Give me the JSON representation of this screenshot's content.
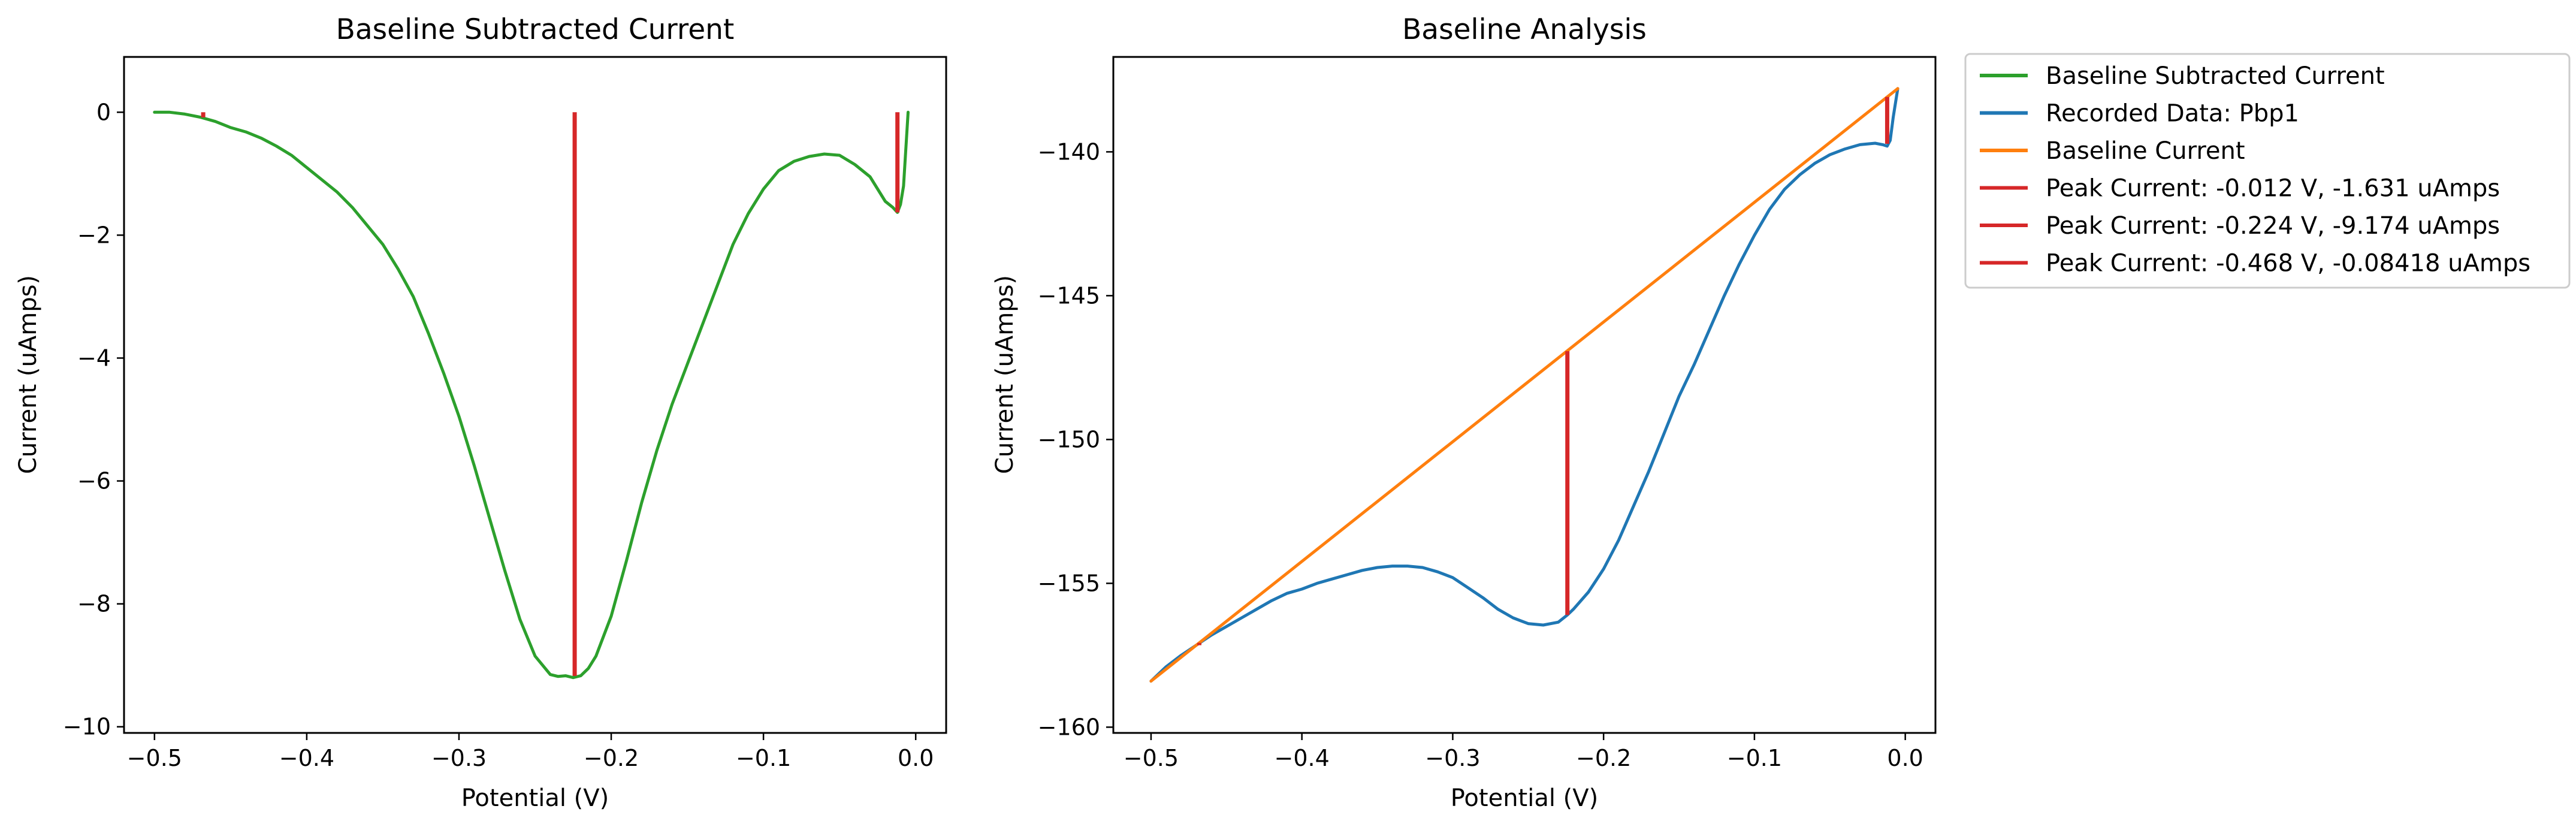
{
  "chart_data": [
    {
      "type": "line",
      "title": "Baseline Subtracted Current",
      "xlabel": "Potential (V)",
      "ylabel": "Current (uAmps)",
      "xlim": [
        -0.52,
        0.02
      ],
      "ylim": [
        -10.1,
        0.9
      ],
      "xticks": [
        -0.5,
        -0.4,
        -0.3,
        -0.2,
        -0.1,
        0.0
      ],
      "xtick_labels": [
        "−0.5",
        "−0.4",
        "−0.3",
        "−0.2",
        "−0.1",
        "0.0"
      ],
      "yticks": [
        0,
        -2,
        -4,
        -6,
        -8,
        -10
      ],
      "ytick_labels": [
        "0",
        "−2",
        "−4",
        "−6",
        "−8",
        "−10"
      ],
      "series": [
        {
          "name": "Baseline Subtracted Current",
          "color": "#2ca02c",
          "x": [
            -0.5,
            -0.49,
            -0.48,
            -0.47,
            -0.46,
            -0.45,
            -0.44,
            -0.43,
            -0.42,
            -0.41,
            -0.4,
            -0.39,
            -0.38,
            -0.37,
            -0.36,
            -0.35,
            -0.34,
            -0.33,
            -0.32,
            -0.31,
            -0.3,
            -0.29,
            -0.28,
            -0.27,
            -0.26,
            -0.25,
            -0.24,
            -0.235,
            -0.23,
            -0.225,
            -0.22,
            -0.215,
            -0.21,
            -0.2,
            -0.19,
            -0.18,
            -0.17,
            -0.16,
            -0.15,
            -0.14,
            -0.13,
            -0.12,
            -0.11,
            -0.1,
            -0.09,
            -0.08,
            -0.07,
            -0.06,
            -0.05,
            -0.04,
            -0.03,
            -0.025,
            -0.02,
            -0.015,
            -0.012,
            -0.01,
            -0.008,
            -0.005
          ],
          "y": [
            0.0,
            0.0,
            -0.03,
            -0.08,
            -0.15,
            -0.25,
            -0.32,
            -0.42,
            -0.55,
            -0.7,
            -0.9,
            -1.1,
            -1.3,
            -1.55,
            -1.85,
            -2.15,
            -2.55,
            -3.0,
            -3.6,
            -4.25,
            -4.95,
            -5.75,
            -6.6,
            -7.45,
            -8.25,
            -8.85,
            -9.15,
            -9.18,
            -9.17,
            -9.2,
            -9.17,
            -9.05,
            -8.85,
            -8.2,
            -7.3,
            -6.35,
            -5.5,
            -4.75,
            -4.1,
            -3.45,
            -2.8,
            -2.15,
            -1.65,
            -1.25,
            -0.95,
            -0.8,
            -0.72,
            -0.68,
            -0.7,
            -0.85,
            -1.05,
            -1.25,
            -1.45,
            -1.55,
            -1.63,
            -1.5,
            -1.2,
            0.0
          ]
        }
      ],
      "peak_lines": [
        {
          "x": -0.224,
          "y0": 0.0,
          "y1": -9.174,
          "color": "#d62728"
        },
        {
          "x": -0.012,
          "y0": 0.0,
          "y1": -1.631,
          "color": "#d62728"
        },
        {
          "x": -0.468,
          "y0": 0.0,
          "y1": -0.08418,
          "color": "#d62728"
        }
      ]
    },
    {
      "type": "line",
      "title": "Baseline Analysis",
      "xlabel": "Potential (V)",
      "ylabel": "Current (uAmps)",
      "xlim": [
        -0.525,
        0.02
      ],
      "ylim": [
        -160.2,
        -136.7
      ],
      "xticks": [
        -0.5,
        -0.4,
        -0.3,
        -0.2,
        -0.1,
        0.0
      ],
      "xtick_labels": [
        "−0.5",
        "−0.4",
        "−0.3",
        "−0.2",
        "−0.1",
        "0.0"
      ],
      "yticks": [
        -140,
        -145,
        -150,
        -155,
        -160
      ],
      "ytick_labels": [
        "−140",
        "−145",
        "−150",
        "−155",
        "−160"
      ],
      "series": [
        {
          "name": "Recorded Data: Pbp1",
          "color": "#1f77b4",
          "x": [
            -0.5,
            -0.49,
            -0.48,
            -0.47,
            -0.46,
            -0.45,
            -0.44,
            -0.43,
            -0.42,
            -0.41,
            -0.4,
            -0.39,
            -0.38,
            -0.37,
            -0.36,
            -0.35,
            -0.34,
            -0.33,
            -0.32,
            -0.31,
            -0.3,
            -0.29,
            -0.28,
            -0.27,
            -0.26,
            -0.25,
            -0.24,
            -0.23,
            -0.224,
            -0.22,
            -0.21,
            -0.2,
            -0.19,
            -0.18,
            -0.17,
            -0.16,
            -0.15,
            -0.14,
            -0.13,
            -0.12,
            -0.11,
            -0.1,
            -0.09,
            -0.08,
            -0.07,
            -0.06,
            -0.05,
            -0.04,
            -0.03,
            -0.02,
            -0.015,
            -0.012,
            -0.01,
            -0.008,
            -0.005
          ],
          "y": [
            -158.4,
            -157.9,
            -157.5,
            -157.15,
            -156.8,
            -156.5,
            -156.2,
            -155.9,
            -155.6,
            -155.35,
            -155.2,
            -155.0,
            -154.85,
            -154.7,
            -154.55,
            -154.45,
            -154.4,
            -154.4,
            -154.45,
            -154.6,
            -154.8,
            -155.15,
            -155.5,
            -155.9,
            -156.2,
            -156.4,
            -156.45,
            -156.35,
            -156.1,
            -155.9,
            -155.3,
            -154.5,
            -153.5,
            -152.3,
            -151.1,
            -149.8,
            -148.5,
            -147.4,
            -146.2,
            -145.0,
            -143.9,
            -142.9,
            -142.0,
            -141.3,
            -140.8,
            -140.4,
            -140.1,
            -139.9,
            -139.75,
            -139.7,
            -139.75,
            -139.8,
            -139.6,
            -138.8,
            -137.8
          ]
        },
        {
          "name": "Baseline Current",
          "color": "#ff7f0e",
          "x": [
            -0.5,
            -0.005
          ],
          "y": [
            -158.4,
            -137.8
          ]
        }
      ],
      "peak_lines": [
        {
          "x": -0.224,
          "y0": -146.93,
          "y1": -156.1,
          "color": "#d62728"
        },
        {
          "x": -0.012,
          "y0": -138.09,
          "y1": -139.72,
          "color": "#d62728"
        },
        {
          "x": -0.468,
          "y0": -157.07,
          "y1": -157.15,
          "color": "#d62728"
        }
      ]
    }
  ],
  "legend": {
    "placement": "outside-right",
    "entries": [
      {
        "label": "Baseline Subtracted Current",
        "color": "#2ca02c"
      },
      {
        "label": "Recorded Data: Pbp1",
        "color": "#1f77b4"
      },
      {
        "label": "Baseline Current",
        "color": "#ff7f0e"
      },
      {
        "label": "Peak Current: -0.012 V, -1.631 uAmps",
        "color": "#d62728"
      },
      {
        "label": "Peak Current: -0.224 V, -9.174 uAmps",
        "color": "#d62728"
      },
      {
        "label": "Peak Current: -0.468 V, -0.08418 uAmps",
        "color": "#d62728"
      }
    ]
  }
}
